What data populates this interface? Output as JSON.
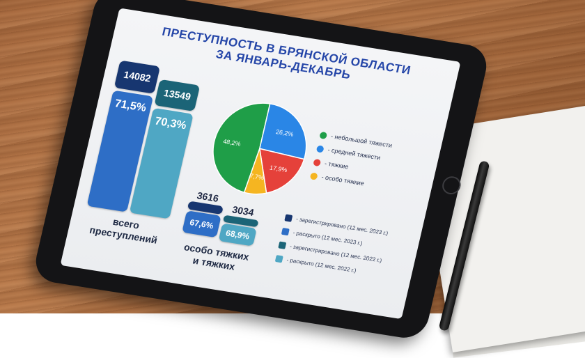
{
  "screen": {
    "title_line1": "ПРЕСТУПНОСТЬ В БРЯНСКОЙ ОБЛАСТИ",
    "title_line2": "ЗА ЯНВАРЬ-ДЕКАБРЬ"
  },
  "totals": {
    "reg_2023": "14082",
    "solved_2023": "71,5%",
    "reg_2022": "13549",
    "solved_2022": "70,3%",
    "caption_line1": "всего",
    "caption_line2": "преступлений"
  },
  "grave": {
    "reg_2023": "3616",
    "solved_2023": "67,6%",
    "reg_2022": "3034",
    "solved_2022": "68,9%",
    "caption_line1": "особо тяжких",
    "caption_line2": "и тяжких"
  },
  "pie": {
    "slices": [
      {
        "label": "48,2%",
        "value": 48.2,
        "color": "#1f9e48"
      },
      {
        "label": "26,2%",
        "value": 26.2,
        "color": "#2a86e6"
      },
      {
        "label": "17,9%",
        "value": 17.9,
        "color": "#e5413a"
      },
      {
        "label": "7,7%",
        "value": 7.7,
        "color": "#f5b521"
      }
    ],
    "legend": [
      {
        "text": "- небольшой тяжести",
        "color": "#1f9e48"
      },
      {
        "text": "- средней тяжести",
        "color": "#2a86e6"
      },
      {
        "text": "- тяжкие",
        "color": "#e5413a"
      },
      {
        "text": "- особо тяжкие",
        "color": "#f5b521"
      }
    ]
  },
  "bar_legend": [
    {
      "text": "- зарегистрировано (12 мес. 2023 г.)",
      "color": "#173670"
    },
    {
      "text": "- раскрыто (12 мес. 2023 г.)",
      "color": "#2e6ec6"
    },
    {
      "text": "- зарегистрировано (12 мес. 2022 г.)",
      "color": "#1b6477"
    },
    {
      "text": "- раскрыто (12 мес. 2022 г.)",
      "color": "#4fa7c4"
    }
  ]
}
